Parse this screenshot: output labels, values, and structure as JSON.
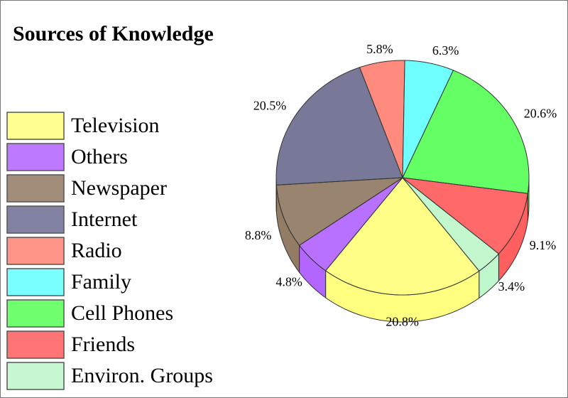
{
  "chart_data": {
    "type": "pie",
    "title": "Sources of Knowledge",
    "categories": [
      "Television",
      "Others",
      "Newspaper",
      "Internet",
      "Radio",
      "Family",
      "Cell Phones",
      "Friends",
      "Environ. Groups"
    ],
    "values": [
      20.8,
      4.8,
      8.8,
      20.5,
      5.8,
      6.3,
      20.6,
      9.1,
      3.4
    ],
    "value_labels": [
      "20.8%",
      "4.8%",
      "8.8%",
      "20.5%",
      "5.8%",
      "6.3%",
      "20.6%",
      "9.1%",
      "3.4%"
    ],
    "colors": [
      "#ffff55",
      "#9a33ff",
      "#6e5032",
      "#3e3e6e",
      "#ff5a48",
      "#33ffff",
      "#22ff22",
      "#ff2a2a",
      "#aaf5bb"
    ],
    "legend": "left"
  }
}
